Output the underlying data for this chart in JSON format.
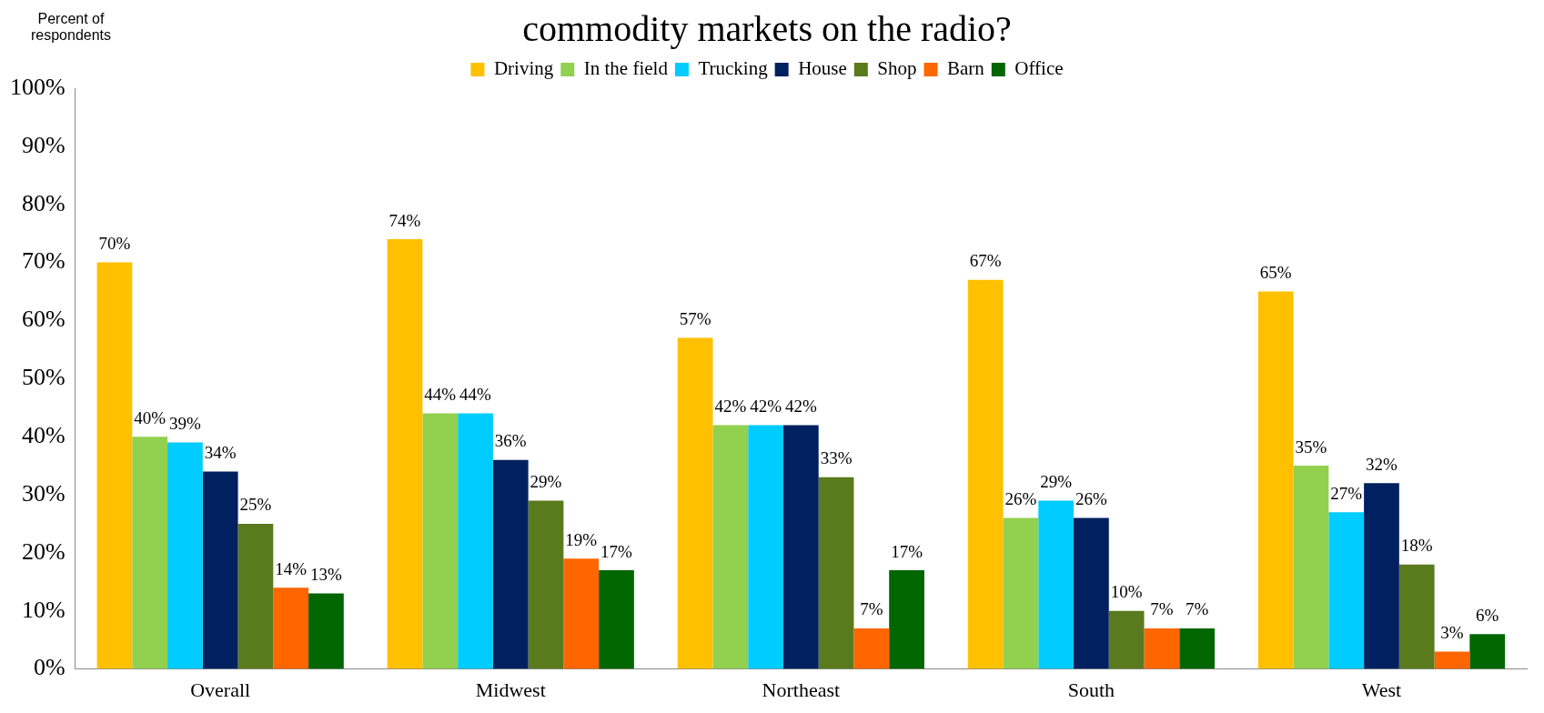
{
  "chart_data": {
    "type": "bar",
    "title": "commodity markets on the radio?",
    "ylabel": "Percent of respondents",
    "categories": [
      "Overall",
      "Midwest",
      "Northeast",
      "South",
      "West"
    ],
    "series": [
      {
        "name": "Driving",
        "color": "#ffc000",
        "values": [
          70,
          74,
          57,
          67,
          65
        ],
        "value_labels": [
          "70%",
          "74%",
          "57%",
          "67%",
          "65%"
        ]
      },
      {
        "name": "In the field",
        "color": "#92d050",
        "values": [
          40,
          44,
          42,
          26,
          35
        ],
        "value_labels": [
          "40%",
          "44%",
          "42%",
          "26%",
          "35%"
        ]
      },
      {
        "name": "Trucking",
        "color": "#00ccff",
        "values": [
          39,
          44,
          42,
          29,
          27
        ],
        "value_labels": [
          "39%",
          "44%",
          "42%",
          "29%",
          "27%"
        ]
      },
      {
        "name": "House",
        "color": "#002060",
        "values": [
          34,
          36,
          42,
          26,
          32
        ],
        "value_labels": [
          "34%",
          "36%",
          "42%",
          "26%",
          "32%"
        ]
      },
      {
        "name": "Shop",
        "color": "#5a7a1e",
        "values": [
          25,
          29,
          33,
          10,
          18
        ],
        "value_labels": [
          "25%",
          "29%",
          "33%",
          "10%",
          "18%"
        ]
      },
      {
        "name": "Barn",
        "color": "#ff6600",
        "values": [
          14,
          19,
          7,
          7,
          3
        ],
        "value_labels": [
          "14%",
          "19%",
          "7%",
          "7%",
          "3%"
        ]
      },
      {
        "name": "Office",
        "color": "#006600",
        "values": [
          13,
          17,
          17,
          7,
          6
        ],
        "value_labels": [
          "13%",
          "17%",
          "17%",
          "7%",
          "6%"
        ]
      }
    ],
    "ylim": [
      0,
      100
    ],
    "yticks": [
      {
        "value": 0,
        "label": "0%"
      },
      {
        "value": 10,
        "label": "10%"
      },
      {
        "value": 20,
        "label": "20%"
      },
      {
        "value": 30,
        "label": "30%"
      },
      {
        "value": 40,
        "label": "40%"
      },
      {
        "value": 50,
        "label": "50%"
      },
      {
        "value": 60,
        "label": "60%"
      },
      {
        "value": 70,
        "label": "70%"
      },
      {
        "value": 80,
        "label": "80%"
      },
      {
        "value": 90,
        "label": "90%"
      },
      {
        "value": 100,
        "label": "100%"
      }
    ],
    "grid": false,
    "legend": "top"
  }
}
